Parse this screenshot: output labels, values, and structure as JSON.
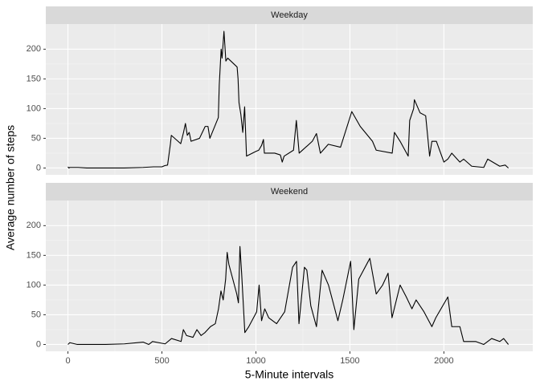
{
  "axes": {
    "xlabel": "5-Minute intervals",
    "ylabel": "Average number of steps"
  },
  "chart_data": [
    {
      "type": "line",
      "title": "Weekday",
      "color": "#000000",
      "x": [
        0,
        5,
        10,
        55,
        100,
        200,
        300,
        400,
        455,
        500,
        515,
        530,
        545,
        550,
        600,
        615,
        625,
        635,
        645,
        655,
        700,
        715,
        730,
        745,
        755,
        800,
        805,
        815,
        820,
        830,
        835,
        840,
        850,
        900,
        905,
        910,
        920,
        930,
        940,
        950,
        1000,
        1015,
        1030,
        1040,
        1045,
        1100,
        1130,
        1140,
        1150,
        1200,
        1215,
        1230,
        1300,
        1322,
        1343,
        1385,
        1450,
        1510,
        1555,
        1620,
        1640,
        1725,
        1737,
        1767,
        1810,
        1818,
        1839,
        1843,
        1873,
        1903,
        1924,
        1936,
        1960,
        2000,
        2021,
        2042,
        2085,
        2105,
        2148,
        2212,
        2233,
        2297,
        2326,
        2343
      ],
      "values": [
        2,
        0,
        1,
        1,
        0,
        0,
        0,
        1,
        2,
        2,
        4,
        5,
        40,
        55,
        41,
        60,
        75,
        55,
        60,
        45,
        50,
        60,
        70,
        70,
        50,
        85,
        140,
        200,
        185,
        230,
        206,
        180,
        185,
        170,
        150,
        110,
        90,
        60,
        103,
        20,
        28,
        30,
        38,
        48,
        25,
        25,
        22,
        10,
        20,
        30,
        80,
        25,
        45,
        58,
        25,
        40,
        35,
        95,
        70,
        45,
        30,
        25,
        60,
        45,
        20,
        80,
        100,
        115,
        93,
        88,
        20,
        45,
        45,
        10,
        15,
        25,
        10,
        15,
        3,
        1,
        15,
        3,
        5,
        0
      ],
      "xlim": [
        -117.75,
        2472.75
      ],
      "xticks": [
        0,
        500,
        1000,
        1500,
        2000
      ],
      "ylim": [
        -11.5,
        242.3
      ],
      "yticks": [
        0,
        50,
        100,
        150,
        200
      ]
    },
    {
      "type": "line",
      "title": "Weekend",
      "color": "#000000",
      "x": [
        0,
        10,
        50,
        200,
        300,
        400,
        430,
        450,
        500,
        517,
        551,
        602,
        614,
        631,
        665,
        686,
        708,
        729,
        758,
        784,
        801,
        814,
        826,
        839,
        847,
        856,
        898,
        907,
        915,
        924,
        941,
        962,
        1004,
        1017,
        1030,
        1047,
        1068,
        1110,
        1153,
        1195,
        1216,
        1229,
        1258,
        1271,
        1292,
        1322,
        1352,
        1386,
        1407,
        1436,
        1462,
        1504,
        1521,
        1547,
        1606,
        1640,
        1674,
        1703,
        1724,
        1767,
        1800,
        1830,
        1852,
        1894,
        1936,
        1957,
        2021,
        2042,
        2085,
        2105,
        2169,
        2212,
        2254,
        2297,
        2318,
        2343
      ],
      "values": [
        0,
        3,
        0,
        0,
        1,
        4,
        0,
        5,
        2,
        1,
        10,
        5,
        25,
        15,
        12,
        25,
        15,
        20,
        30,
        35,
        60,
        90,
        75,
        110,
        155,
        135,
        85,
        70,
        165,
        120,
        20,
        30,
        55,
        100,
        40,
        60,
        45,
        35,
        55,
        130,
        140,
        35,
        130,
        125,
        65,
        30,
        125,
        100,
        75,
        40,
        75,
        140,
        25,
        110,
        145,
        85,
        100,
        120,
        45,
        100,
        80,
        60,
        75,
        55,
        30,
        45,
        80,
        30,
        30,
        5,
        5,
        0,
        10,
        5,
        10,
        0
      ],
      "xlim": [
        -117.75,
        2472.75
      ],
      "xticks": [
        0,
        500,
        1000,
        1500,
        2000
      ],
      "ylim": [
        -11.5,
        242.3
      ],
      "yticks": [
        0,
        50,
        100,
        150,
        200
      ]
    }
  ]
}
